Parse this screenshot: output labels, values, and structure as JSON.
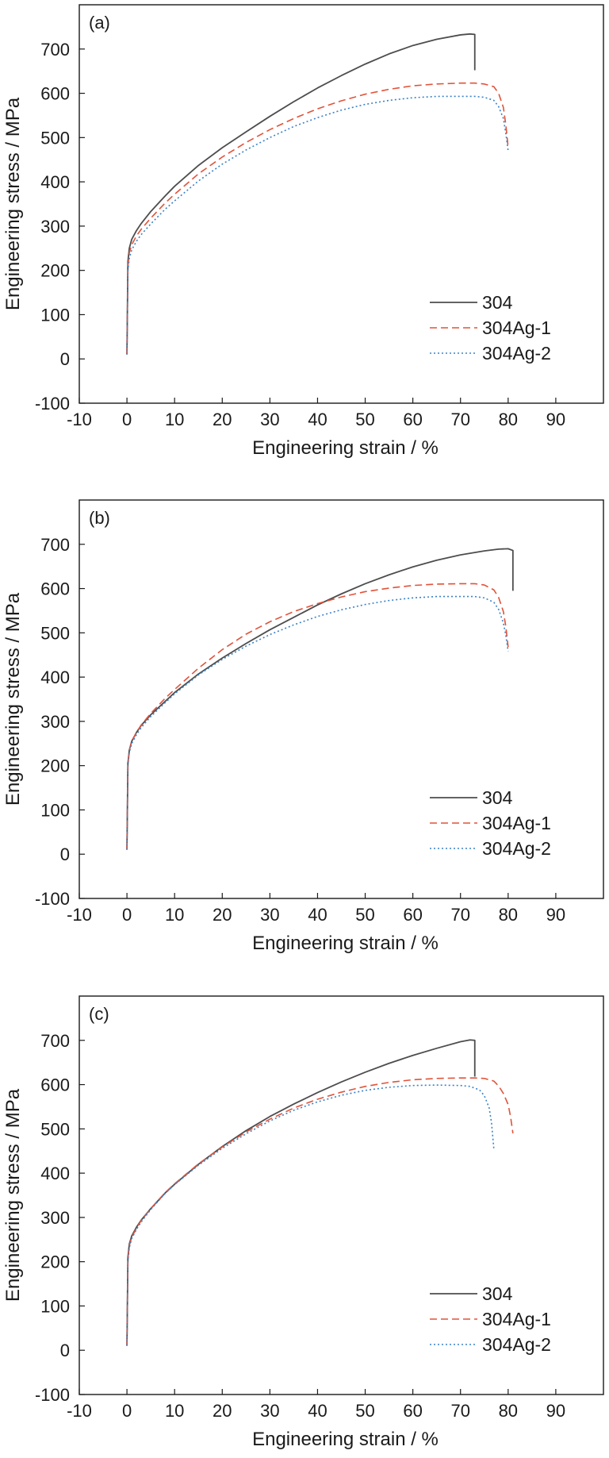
{
  "chart_data": [
    {
      "type": "line",
      "panel_label": "(a)",
      "xlabel": "Engineering strain / %",
      "ylabel": "Engineering  stress / MPa",
      "xlim": [
        -10,
        100
      ],
      "ylim": [
        -100,
        800
      ],
      "xticks": [
        -10,
        0,
        10,
        20,
        30,
        40,
        50,
        60,
        70,
        80,
        90
      ],
      "yticks": [
        -100,
        0,
        100,
        200,
        300,
        400,
        500,
        600,
        700
      ],
      "grid": false,
      "legend_position": "lower-right",
      "series": [
        {
          "name": "304",
          "color": "#4d4d4d",
          "dash": "solid",
          "x": [
            0,
            0.2,
            0.5,
            1,
            2,
            3,
            5,
            8,
            10,
            15,
            20,
            25,
            30,
            35,
            40,
            45,
            50,
            55,
            60,
            65,
            70,
            72,
            73,
            73
          ],
          "y": [
            10,
            220,
            250,
            270,
            290,
            306,
            333,
            368,
            390,
            437,
            477,
            513,
            548,
            581,
            612,
            640,
            666,
            689,
            708,
            722,
            732,
            734,
            733,
            652
          ]
        },
        {
          "name": "304Ag-1",
          "color": "#e0533a",
          "dash": "dashed",
          "x": [
            0,
            0.2,
            0.5,
            1,
            2,
            3,
            5,
            8,
            10,
            15,
            20,
            25,
            30,
            35,
            40,
            45,
            50,
            55,
            60,
            65,
            70,
            73,
            75,
            77,
            78,
            79,
            79.5,
            80
          ],
          "y": [
            10,
            210,
            240,
            258,
            278,
            293,
            318,
            352,
            372,
            418,
            456,
            489,
            518,
            543,
            565,
            583,
            598,
            609,
            617,
            621,
            623,
            623,
            621,
            615,
            600,
            568,
            530,
            478
          ]
        },
        {
          "name": "304Ag-2",
          "color": "#3b82c6",
          "dash": "dotted",
          "x": [
            0,
            0.2,
            0.5,
            1,
            2,
            3,
            5,
            8,
            10,
            15,
            20,
            25,
            30,
            35,
            40,
            45,
            50,
            55,
            60,
            65,
            70,
            73,
            75,
            77,
            78,
            79,
            79.5,
            80
          ],
          "y": [
            10,
            200,
            228,
            246,
            266,
            281,
            305,
            338,
            357,
            402,
            440,
            472,
            500,
            525,
            545,
            562,
            575,
            584,
            590,
            593,
            593,
            593,
            591,
            584,
            570,
            543,
            510,
            470
          ]
        }
      ]
    },
    {
      "type": "line",
      "panel_label": "(b)",
      "xlabel": "Engineering strain / %",
      "ylabel": "Engineering  stress / MPa",
      "xlim": [
        -10,
        100
      ],
      "ylim": [
        -100,
        800
      ],
      "xticks": [
        -10,
        0,
        10,
        20,
        30,
        40,
        50,
        60,
        70,
        80,
        90
      ],
      "yticks": [
        -100,
        0,
        100,
        200,
        300,
        400,
        500,
        600,
        700
      ],
      "grid": false,
      "legend_position": "lower-right",
      "series": [
        {
          "name": "304",
          "color": "#4d4d4d",
          "dash": "solid",
          "x": [
            0,
            0.2,
            0.5,
            1,
            2,
            3,
            5,
            8,
            10,
            15,
            20,
            25,
            30,
            35,
            40,
            45,
            50,
            55,
            60,
            65,
            70,
            75,
            78,
            80,
            81,
            81
          ],
          "y": [
            10,
            205,
            235,
            255,
            275,
            291,
            315,
            345,
            365,
            407,
            443,
            476,
            507,
            535,
            563,
            588,
            611,
            631,
            649,
            664,
            676,
            685,
            689,
            690,
            686,
            595
          ]
        },
        {
          "name": "304Ag-1",
          "color": "#e0533a",
          "dash": "dashed",
          "x": [
            0,
            0.2,
            0.5,
            1,
            2,
            3,
            5,
            8,
            10,
            15,
            20,
            25,
            30,
            35,
            40,
            45,
            50,
            55,
            60,
            65,
            70,
            73,
            75,
            77,
            78,
            79,
            79.5,
            80
          ],
          "y": [
            10,
            205,
            235,
            255,
            275,
            292,
            318,
            352,
            372,
            420,
            462,
            497,
            525,
            548,
            566,
            581,
            593,
            601,
            607,
            610,
            611,
            611,
            608,
            597,
            580,
            548,
            515,
            468
          ]
        },
        {
          "name": "304Ag-2",
          "color": "#3b82c6",
          "dash": "dotted",
          "x": [
            0,
            0.2,
            0.5,
            1,
            2,
            3,
            5,
            8,
            10,
            15,
            20,
            25,
            30,
            35,
            40,
            45,
            50,
            55,
            60,
            65,
            70,
            73,
            75,
            77,
            78,
            79,
            79.5,
            80
          ],
          "y": [
            10,
            200,
            230,
            250,
            270,
            286,
            311,
            342,
            362,
            405,
            440,
            470,
            496,
            518,
            537,
            552,
            564,
            573,
            579,
            582,
            582,
            582,
            579,
            569,
            553,
            522,
            495,
            458
          ]
        }
      ]
    },
    {
      "type": "line",
      "panel_label": "(c)",
      "xlabel": "Engineering strain / %",
      "ylabel": "Engineering  stress / MPa",
      "xlim": [
        -10,
        100
      ],
      "ylim": [
        -100,
        800
      ],
      "xticks": [
        -10,
        0,
        10,
        20,
        30,
        40,
        50,
        60,
        70,
        80,
        90
      ],
      "yticks": [
        -100,
        0,
        100,
        200,
        300,
        400,
        500,
        600,
        700
      ],
      "grid": false,
      "legend_position": "lower-right",
      "series": [
        {
          "name": "304",
          "color": "#4d4d4d",
          "dash": "solid",
          "x": [
            0,
            0.2,
            0.5,
            1,
            2,
            3,
            5,
            8,
            10,
            15,
            20,
            25,
            30,
            35,
            40,
            45,
            50,
            55,
            60,
            65,
            70,
            72,
            73,
            73
          ],
          "y": [
            10,
            210,
            240,
            258,
            278,
            294,
            320,
            355,
            375,
            420,
            460,
            496,
            528,
            556,
            582,
            606,
            628,
            648,
            666,
            682,
            697,
            701,
            700,
            618
          ]
        },
        {
          "name": "304Ag-1",
          "color": "#e0533a",
          "dash": "dashed",
          "x": [
            0,
            0.2,
            0.5,
            1,
            2,
            3,
            5,
            8,
            10,
            15,
            20,
            25,
            30,
            35,
            40,
            45,
            50,
            55,
            60,
            65,
            70,
            73,
            75,
            77,
            78,
            79,
            80,
            80.5,
            81
          ],
          "y": [
            10,
            205,
            236,
            255,
            276,
            293,
            320,
            356,
            376,
            421,
            459,
            493,
            522,
            547,
            567,
            583,
            596,
            605,
            611,
            614,
            615,
            615,
            614,
            608,
            597,
            580,
            555,
            528,
            490
          ]
        },
        {
          "name": "304Ag-2",
          "color": "#3b82c6",
          "dash": "dotted",
          "x": [
            0,
            0.2,
            0.5,
            1,
            2,
            3,
            5,
            8,
            10,
            15,
            20,
            25,
            30,
            35,
            40,
            45,
            50,
            55,
            60,
            65,
            70,
            72,
            74,
            75,
            76,
            76.5,
            77
          ],
          "y": [
            10,
            200,
            232,
            252,
            273,
            290,
            318,
            354,
            374,
            418,
            456,
            489,
            518,
            542,
            561,
            576,
            587,
            594,
            598,
            599,
            598,
            596,
            588,
            575,
            548,
            515,
            455
          ]
        }
      ]
    }
  ]
}
